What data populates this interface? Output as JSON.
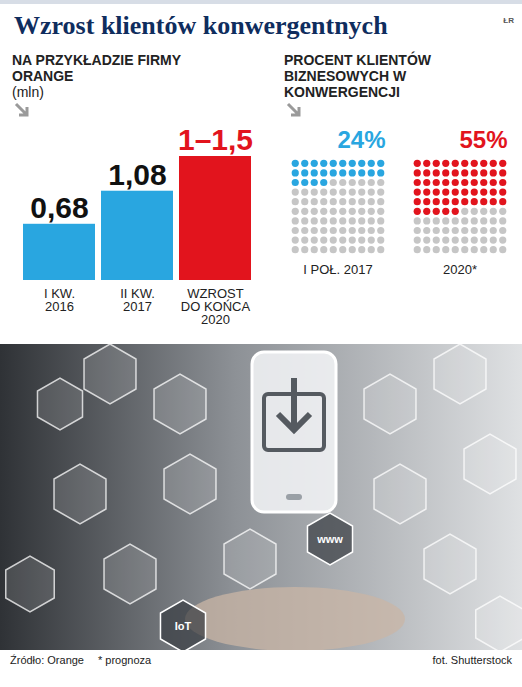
{
  "title": "Wzrost klientów konwergentnych",
  "corner_label": "ŁR",
  "chart_data": [
    {
      "type": "bar",
      "title": "NA PRZYKŁADZIE FIRMY ORANGE",
      "subtitle": "(mln)",
      "categories": [
        "I KW. 2016",
        "II KW. 2017",
        "WZROST DO KOŃCA 2020"
      ],
      "values": [
        0.68,
        1.08,
        1.5
      ],
      "value_labels": [
        "0,68",
        "1,08",
        "1–1,5"
      ],
      "colors": [
        "#29a6e0",
        "#29a6e0",
        "#e2141d"
      ],
      "data_labels": true,
      "tick_labels": "x"
    },
    {
      "type": "waffle",
      "title": "PROCENT KLIENTÓW BIZNESOWYCH W KONWERGENCJI",
      "categories": [
        "I POŁ. 2017",
        "2020*"
      ],
      "values": [
        24,
        55
      ],
      "value_labels": [
        "24%",
        "55%"
      ],
      "colors": [
        "#29a6e0",
        "#e2141d"
      ],
      "data_labels": true
    }
  ],
  "photo_icon_texts": [
    "www",
    "IoT"
  ],
  "source": "Źródło: Orange",
  "note": "* prognoza",
  "photo_credit": "fot. Shutterstock"
}
